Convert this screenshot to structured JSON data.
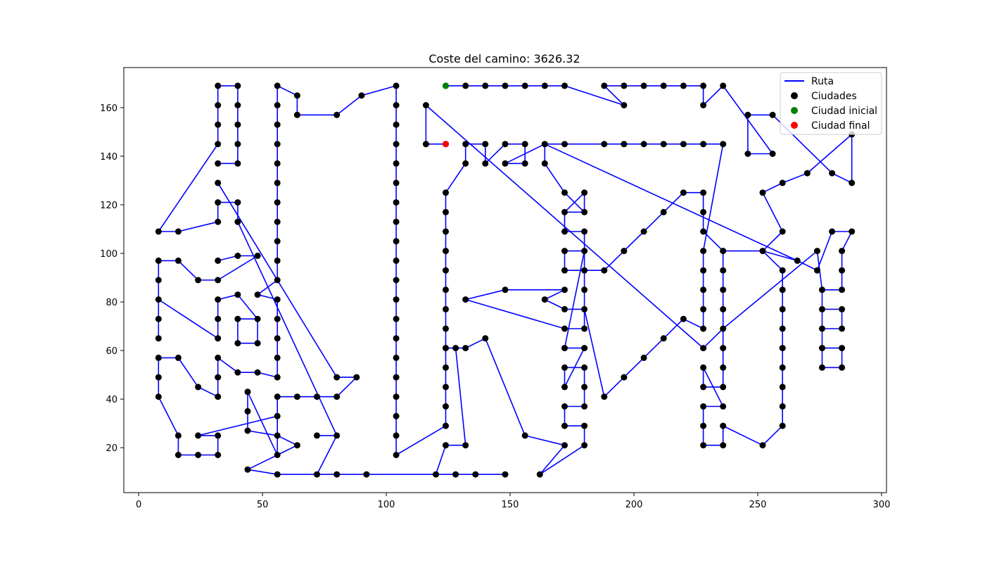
{
  "chart_data": {
    "type": "line",
    "title": "Coste del camino: 3626.32",
    "xlabel": "",
    "ylabel": "",
    "xlim": [
      -6,
      302
    ],
    "ylim": [
      1.5,
      176.5
    ],
    "xticks": [
      0,
      50,
      100,
      150,
      200,
      250,
      300
    ],
    "yticks": [
      20,
      40,
      60,
      80,
      100,
      120,
      140,
      160
    ],
    "grid": false,
    "legend_position": "top-right",
    "legend": [
      "Ruta",
      "Ciudades",
      "Ciudad inicial",
      "Ciudad final"
    ],
    "colors": {
      "route": "#0000ff",
      "cities": "#000000",
      "start": "#008000",
      "end": "#ff0000"
    },
    "start_city": [
      124,
      169
    ],
    "end_city": [
      124,
      145
    ],
    "route": [
      [
        124,
        169
      ],
      [
        132,
        169
      ],
      [
        140,
        169
      ],
      [
        148,
        169
      ],
      [
        156,
        169
      ],
      [
        164,
        169
      ],
      [
        172,
        169
      ],
      [
        196,
        161
      ],
      [
        188,
        169
      ],
      [
        196,
        169
      ],
      [
        204,
        169
      ],
      [
        212,
        169
      ],
      [
        220,
        169
      ],
      [
        228,
        169
      ],
      [
        228,
        161
      ],
      [
        236,
        169
      ],
      [
        256,
        141
      ],
      [
        246,
        141
      ],
      [
        246,
        157
      ],
      [
        256,
        157
      ],
      [
        280,
        133
      ],
      [
        288,
        129
      ],
      [
        288,
        149
      ],
      [
        270,
        133
      ],
      [
        260,
        129
      ],
      [
        252,
        125
      ],
      [
        260,
        109
      ],
      [
        252,
        101
      ],
      [
        266,
        97
      ],
      [
        274,
        93
      ],
      [
        280,
        109
      ],
      [
        288,
        109
      ],
      [
        284,
        101
      ],
      [
        284,
        93
      ],
      [
        284,
        85
      ],
      [
        276,
        85
      ],
      [
        276,
        77
      ],
      [
        284,
        77
      ],
      [
        284,
        69
      ],
      [
        276,
        69
      ],
      [
        276,
        61
      ],
      [
        284,
        61
      ],
      [
        284,
        53
      ],
      [
        276,
        53
      ],
      [
        276,
        61
      ],
      [
        276,
        69
      ],
      [
        276,
        77
      ],
      [
        276,
        85
      ],
      [
        274,
        101
      ],
      [
        236,
        69
      ],
      [
        236,
        61
      ],
      [
        236,
        53
      ],
      [
        236,
        45
      ],
      [
        228,
        45
      ],
      [
        228,
        53
      ],
      [
        236,
        37
      ],
      [
        228,
        37
      ],
      [
        228,
        29
      ],
      [
        228,
        21
      ],
      [
        236,
        21
      ],
      [
        236,
        29
      ],
      [
        252,
        21
      ],
      [
        260,
        29
      ],
      [
        260,
        37
      ],
      [
        260,
        45
      ],
      [
        260,
        53
      ],
      [
        260,
        61
      ],
      [
        260,
        69
      ],
      [
        260,
        77
      ],
      [
        260,
        85
      ],
      [
        260,
        93
      ],
      [
        252,
        101
      ],
      [
        236,
        101
      ],
      [
        236,
        93
      ],
      [
        236,
        85
      ],
      [
        236,
        77
      ],
      [
        236,
        69
      ],
      [
        228,
        61
      ],
      [
        116,
        161
      ],
      [
        116,
        145
      ],
      [
        124,
        145
      ]
    ],
    "route_b": [
      [
        32,
        169
      ],
      [
        32,
        161
      ],
      [
        32,
        153
      ],
      [
        32,
        145
      ],
      [
        8,
        109
      ],
      [
        16,
        109
      ],
      [
        32,
        113
      ],
      [
        32,
        121
      ],
      [
        40,
        121
      ],
      [
        40,
        113
      ],
      [
        80,
        25
      ],
      [
        72,
        25
      ],
      [
        80,
        25
      ],
      [
        72,
        9
      ],
      [
        56,
        9
      ],
      [
        44,
        11
      ],
      [
        56,
        17
      ],
      [
        64,
        21
      ],
      [
        56,
        25
      ],
      [
        44,
        27
      ],
      [
        44,
        35
      ],
      [
        44,
        43
      ],
      [
        56,
        17
      ],
      [
        56,
        25
      ],
      [
        56,
        33
      ],
      [
        24,
        25
      ],
      [
        32,
        25
      ],
      [
        32,
        17
      ],
      [
        24,
        17
      ],
      [
        16,
        17
      ],
      [
        16,
        25
      ],
      [
        8,
        41
      ],
      [
        8,
        49
      ],
      [
        8,
        57
      ],
      [
        16,
        57
      ],
      [
        24,
        45
      ],
      [
        32,
        41
      ],
      [
        32,
        49
      ],
      [
        32,
        57
      ],
      [
        40,
        51
      ],
      [
        48,
        51
      ],
      [
        56,
        49
      ],
      [
        56,
        57
      ],
      [
        56,
        65
      ],
      [
        56,
        73
      ],
      [
        56,
        81
      ],
      [
        48,
        83
      ],
      [
        56,
        89
      ],
      [
        56,
        97
      ],
      [
        56,
        105
      ],
      [
        56,
        113
      ],
      [
        56,
        121
      ],
      [
        56,
        129
      ],
      [
        56,
        137
      ],
      [
        56,
        145
      ],
      [
        56,
        153
      ],
      [
        56,
        161
      ],
      [
        56,
        169
      ],
      [
        64,
        165
      ],
      [
        64,
        157
      ],
      [
        80,
        157
      ],
      [
        90,
        165
      ],
      [
        104,
        169
      ],
      [
        104,
        161
      ],
      [
        104,
        153
      ],
      [
        104,
        145
      ],
      [
        104,
        137
      ],
      [
        104,
        129
      ],
      [
        104,
        121
      ],
      [
        104,
        113
      ],
      [
        104,
        105
      ],
      [
        104,
        97
      ],
      [
        104,
        89
      ],
      [
        104,
        81
      ],
      [
        104,
        73
      ],
      [
        104,
        65
      ],
      [
        104,
        57
      ],
      [
        104,
        49
      ],
      [
        104,
        41
      ],
      [
        104,
        33
      ],
      [
        104,
        25
      ],
      [
        104,
        17
      ],
      [
        124,
        29
      ],
      [
        124,
        37
      ],
      [
        124,
        45
      ],
      [
        124,
        53
      ],
      [
        124,
        61
      ],
      [
        124,
        69
      ],
      [
        124,
        77
      ],
      [
        124,
        85
      ],
      [
        124,
        93
      ],
      [
        124,
        101
      ],
      [
        124,
        109
      ],
      [
        124,
        117
      ],
      [
        124,
        125
      ],
      [
        132,
        137
      ],
      [
        132,
        145
      ],
      [
        140,
        145
      ],
      [
        140,
        137
      ],
      [
        148,
        145
      ],
      [
        156,
        145
      ],
      [
        156,
        137
      ],
      [
        148,
        137
      ],
      [
        164,
        145
      ],
      [
        172,
        145
      ],
      [
        188,
        145
      ],
      [
        196,
        145
      ],
      [
        204,
        145
      ],
      [
        212,
        145
      ],
      [
        220,
        145
      ],
      [
        228,
        145
      ],
      [
        236,
        145
      ],
      [
        228,
        101
      ],
      [
        228,
        93
      ],
      [
        228,
        85
      ],
      [
        228,
        77
      ],
      [
        228,
        69
      ],
      [
        220,
        73
      ],
      [
        212,
        65
      ],
      [
        204,
        57
      ],
      [
        196,
        49
      ],
      [
        188,
        41
      ],
      [
        180,
        77
      ],
      [
        180,
        69
      ],
      [
        172,
        69
      ],
      [
        132,
        81
      ],
      [
        148,
        85
      ],
      [
        172,
        85
      ],
      [
        164,
        81
      ],
      [
        172,
        77
      ],
      [
        180,
        77
      ],
      [
        180,
        85
      ],
      [
        180,
        93
      ],
      [
        188,
        93
      ],
      [
        196,
        101
      ],
      [
        204,
        109
      ],
      [
        212,
        117
      ],
      [
        220,
        125
      ],
      [
        228,
        125
      ],
      [
        228,
        117
      ],
      [
        228,
        109
      ],
      [
        236,
        101
      ]
    ],
    "route_c": [
      [
        32,
        137
      ],
      [
        40,
        137
      ],
      [
        40,
        145
      ],
      [
        40,
        153
      ],
      [
        40,
        161
      ],
      [
        40,
        169
      ],
      [
        32,
        169
      ]
    ],
    "route_d": [
      [
        32,
        129
      ],
      [
        80,
        49
      ],
      [
        88,
        49
      ],
      [
        80,
        41
      ],
      [
        72,
        41
      ],
      [
        64,
        41
      ],
      [
        56,
        41
      ],
      [
        56,
        33
      ]
    ],
    "route_e": [
      [
        32,
        97
      ],
      [
        40,
        99
      ],
      [
        48,
        99
      ],
      [
        32,
        89
      ],
      [
        24,
        89
      ],
      [
        16,
        97
      ],
      [
        8,
        97
      ],
      [
        8,
        89
      ],
      [
        8,
        81
      ],
      [
        32,
        65
      ],
      [
        32,
        73
      ],
      [
        32,
        81
      ],
      [
        40,
        83
      ],
      [
        48,
        73
      ],
      [
        48,
        63
      ],
      [
        40,
        63
      ],
      [
        40,
        73
      ],
      [
        48,
        73
      ]
    ],
    "route_f": [
      [
        8,
        81
      ],
      [
        8,
        73
      ],
      [
        8,
        65
      ]
    ],
    "route_g": [
      [
        72,
        9
      ],
      [
        80,
        9
      ],
      [
        92,
        9
      ],
      [
        120,
        9
      ],
      [
        128,
        9
      ],
      [
        136,
        9
      ],
      [
        148,
        9
      ],
      [
        120,
        9
      ],
      [
        124,
        21
      ],
      [
        132,
        21
      ],
      [
        128,
        61
      ],
      [
        124,
        61
      ],
      [
        132,
        61
      ],
      [
        140,
        65
      ],
      [
        156,
        25
      ],
      [
        172,
        21
      ],
      [
        162,
        9
      ],
      [
        180,
        21
      ],
      [
        180,
        29
      ],
      [
        172,
        29
      ],
      [
        172,
        37
      ],
      [
        180,
        37
      ],
      [
        180,
        45
      ],
      [
        180,
        53
      ],
      [
        172,
        53
      ],
      [
        172,
        45
      ],
      [
        180,
        61
      ],
      [
        172,
        61
      ],
      [
        180,
        101
      ],
      [
        172,
        101
      ],
      [
        172,
        93
      ],
      [
        180,
        93
      ],
      [
        180,
        109
      ],
      [
        172,
        109
      ],
      [
        172,
        117
      ],
      [
        180,
        117
      ],
      [
        180,
        125
      ],
      [
        172,
        117
      ],
      [
        180,
        117
      ],
      [
        172,
        125
      ],
      [
        164,
        137
      ],
      [
        164,
        145
      ],
      [
        266,
        97
      ]
    ]
  }
}
